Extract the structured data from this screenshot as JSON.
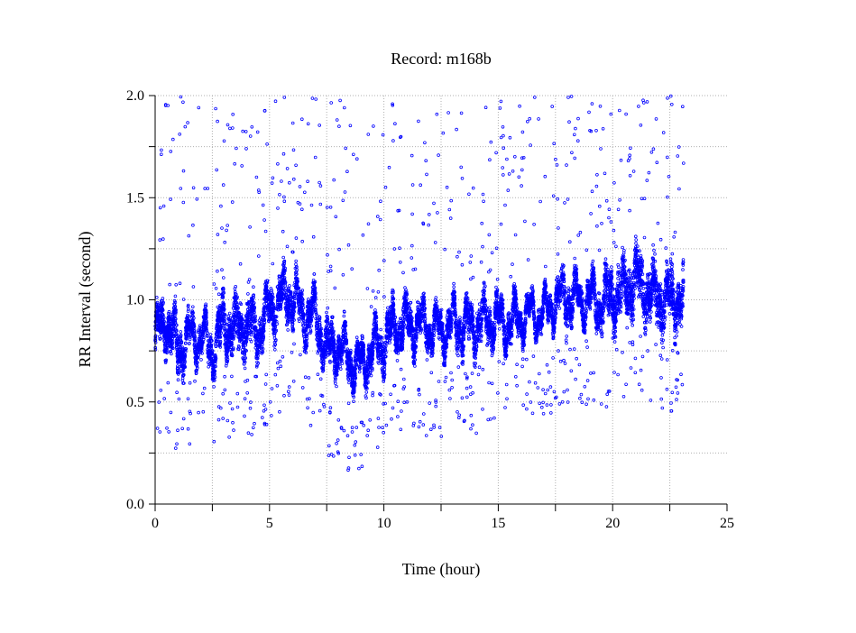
{
  "chart_data": {
    "type": "scatter",
    "title": "Record:  m168b",
    "xlabel": "Time (hour)",
    "ylabel": "RR Interval (second)",
    "xlim": [
      0,
      25
    ],
    "ylim": [
      0.0,
      2.0
    ],
    "xticks": [
      "0",
      "5",
      "10",
      "15",
      "20",
      "25"
    ],
    "xtick_values": [
      0,
      5,
      10,
      15,
      20,
      25
    ],
    "yticks": [
      "0.0",
      "0.5",
      "1.0",
      "1.5",
      "2.0"
    ],
    "ytick_values": [
      0.0,
      0.5,
      1.0,
      1.5,
      2.0
    ],
    "grid": true,
    "grid_x_step": 2.5,
    "grid_y_step": 0.25,
    "marker_color": "#0000ff",
    "series": [
      {
        "name": "RR intervals",
        "description_of_band": "dense band of RR intervals; center value and half-width per time point",
        "x": [
          0,
          0.5,
          1,
          1.5,
          2,
          2.5,
          3,
          3.5,
          4,
          4.5,
          5,
          5.5,
          6,
          6.5,
          7,
          7.5,
          8,
          8.5,
          9,
          9.5,
          10,
          10.5,
          11,
          11.5,
          12,
          12.5,
          13,
          13.5,
          14,
          14.5,
          15,
          15.5,
          16,
          16.5,
          17,
          17.5,
          18,
          18.5,
          19,
          19.5,
          20,
          20.5,
          21,
          21.5,
          22,
          22.5,
          23,
          23.1
        ],
        "center": [
          0.82,
          0.9,
          0.75,
          0.82,
          0.82,
          0.75,
          0.88,
          0.85,
          0.88,
          0.85,
          0.95,
          1.0,
          1.02,
          0.92,
          0.92,
          0.75,
          0.78,
          0.7,
          0.68,
          0.75,
          0.8,
          0.88,
          0.88,
          0.88,
          0.87,
          0.85,
          0.88,
          0.87,
          0.88,
          0.9,
          0.9,
          0.88,
          0.92,
          0.93,
          0.93,
          1.0,
          1.02,
          1.0,
          1.0,
          0.98,
          1.02,
          1.05,
          1.1,
          1.05,
          1.0,
          1.0,
          1.0,
          1.0
        ],
        "half_width": [
          0.15,
          0.13,
          0.17,
          0.12,
          0.12,
          0.13,
          0.17,
          0.18,
          0.18,
          0.16,
          0.15,
          0.15,
          0.15,
          0.13,
          0.13,
          0.15,
          0.13,
          0.13,
          0.12,
          0.12,
          0.14,
          0.15,
          0.15,
          0.12,
          0.12,
          0.12,
          0.12,
          0.14,
          0.15,
          0.15,
          0.12,
          0.12,
          0.1,
          0.08,
          0.08,
          0.13,
          0.15,
          0.12,
          0.12,
          0.15,
          0.18,
          0.2,
          0.2,
          0.18,
          0.2,
          0.2,
          0.18,
          0.18
        ]
      }
    ]
  }
}
